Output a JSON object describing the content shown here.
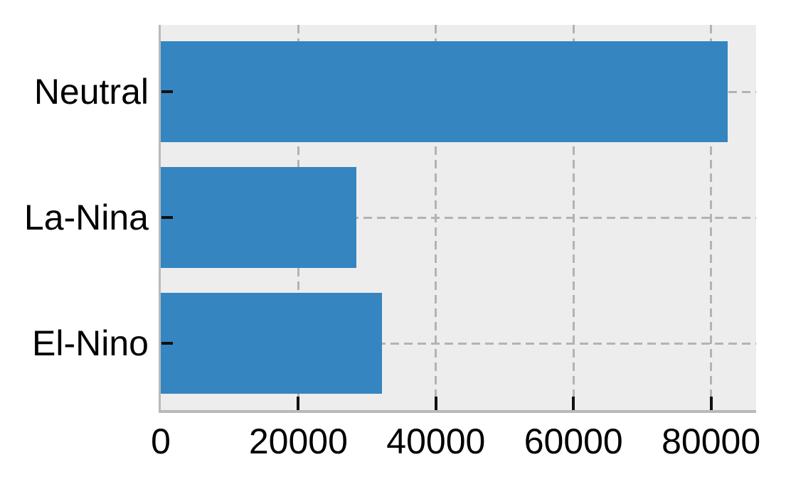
{
  "chart_data": {
    "type": "bar",
    "orientation": "horizontal",
    "title": "",
    "xlabel": "",
    "ylabel": "",
    "categories": [
      "Neutral",
      "La-Nina",
      "El-Nino"
    ],
    "values": [
      82400,
      28400,
      32200
    ],
    "xticks": [
      0,
      20000,
      40000,
      60000,
      80000
    ],
    "xtick_labels": [
      "0",
      "20000",
      "40000",
      "60000",
      "80000"
    ],
    "xlim": [
      0,
      86550
    ],
    "grid": true,
    "grid_style": "dashed",
    "grid_axes": "both",
    "legend": false,
    "colors": {
      "bar": "#3585c1",
      "plot_background": "#ededed",
      "figure_background": "#ffffff",
      "grid": "#b3b3b3",
      "spine": "#b9b9b9",
      "tick_mark": "#111111",
      "tick_text": "#000000"
    }
  }
}
